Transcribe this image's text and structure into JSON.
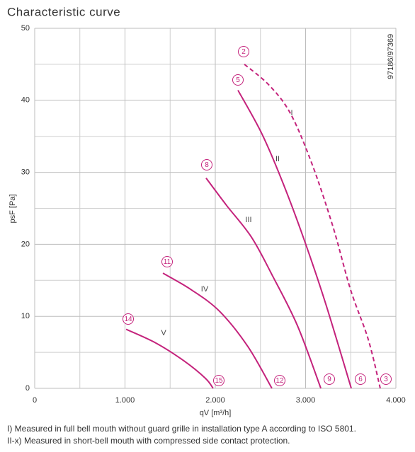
{
  "chart_data": {
    "type": "line",
    "title": "Characteristic curve",
    "code": "97186/97369",
    "xlabel": "qV [m³/h]",
    "ylabel": "psF [Pa]",
    "xlim": [
      0,
      4000
    ],
    "ylim": [
      0,
      50
    ],
    "xticks": [
      0,
      {
        "value": 1000,
        "label": "1.000"
      },
      {
        "value": 2000,
        "label": "2.000"
      },
      {
        "value": 3000,
        "label": "3.000"
      },
      {
        "value": 4000,
        "label": "4.000"
      }
    ],
    "yticks": [
      0,
      10,
      20,
      30,
      40,
      50
    ],
    "xminor": [
      500,
      1500,
      2500,
      3500
    ],
    "yminor": [
      5,
      15,
      25,
      35,
      45
    ],
    "grid": true,
    "series": [
      {
        "name": "I",
        "color": "#c4237c",
        "dashed": true,
        "x": [
          2322,
          2596,
          2831,
          3067,
          3302,
          3498,
          3694,
          3827
        ],
        "values": [
          45.0,
          42.1,
          38.2,
          31.3,
          22.5,
          13.7,
          6.8,
          0
        ]
      },
      {
        "name": "II",
        "color": "#c4237c",
        "dashed": false,
        "x": [
          2251,
          2518,
          2753,
          2988,
          3224,
          3506
        ],
        "values": [
          41.4,
          35.3,
          28.4,
          20.5,
          11.7,
          0
        ]
      },
      {
        "name": "III",
        "color": "#c4237c",
        "dashed": false,
        "x": [
          1898,
          2125,
          2400,
          2635,
          2910,
          3169
        ],
        "values": [
          29.2,
          25.4,
          21.0,
          15.6,
          8.7,
          0
        ]
      },
      {
        "name": "IV",
        "color": "#c4237c",
        "dashed": false,
        "x": [
          1420,
          1733,
          2047,
          2361,
          2627
        ],
        "values": [
          16.0,
          13.7,
          10.7,
          5.8,
          0
        ]
      },
      {
        "name": "V",
        "color": "#c4237c",
        "dashed": false,
        "x": [
          1012,
          1341,
          1655,
          1890,
          1976
        ],
        "values": [
          8.2,
          6.3,
          3.8,
          1.4,
          0
        ]
      }
    ],
    "annotations": [
      "2",
      "5",
      "8",
      "11",
      "14",
      "15",
      "12",
      "9",
      "6",
      "3"
    ],
    "notes": [
      "I) Measured in full bell mouth without guard grille in installation type A according to ISO 5801.",
      "II-x) Measured in short-bell mouth with compressed side contact protection."
    ]
  }
}
